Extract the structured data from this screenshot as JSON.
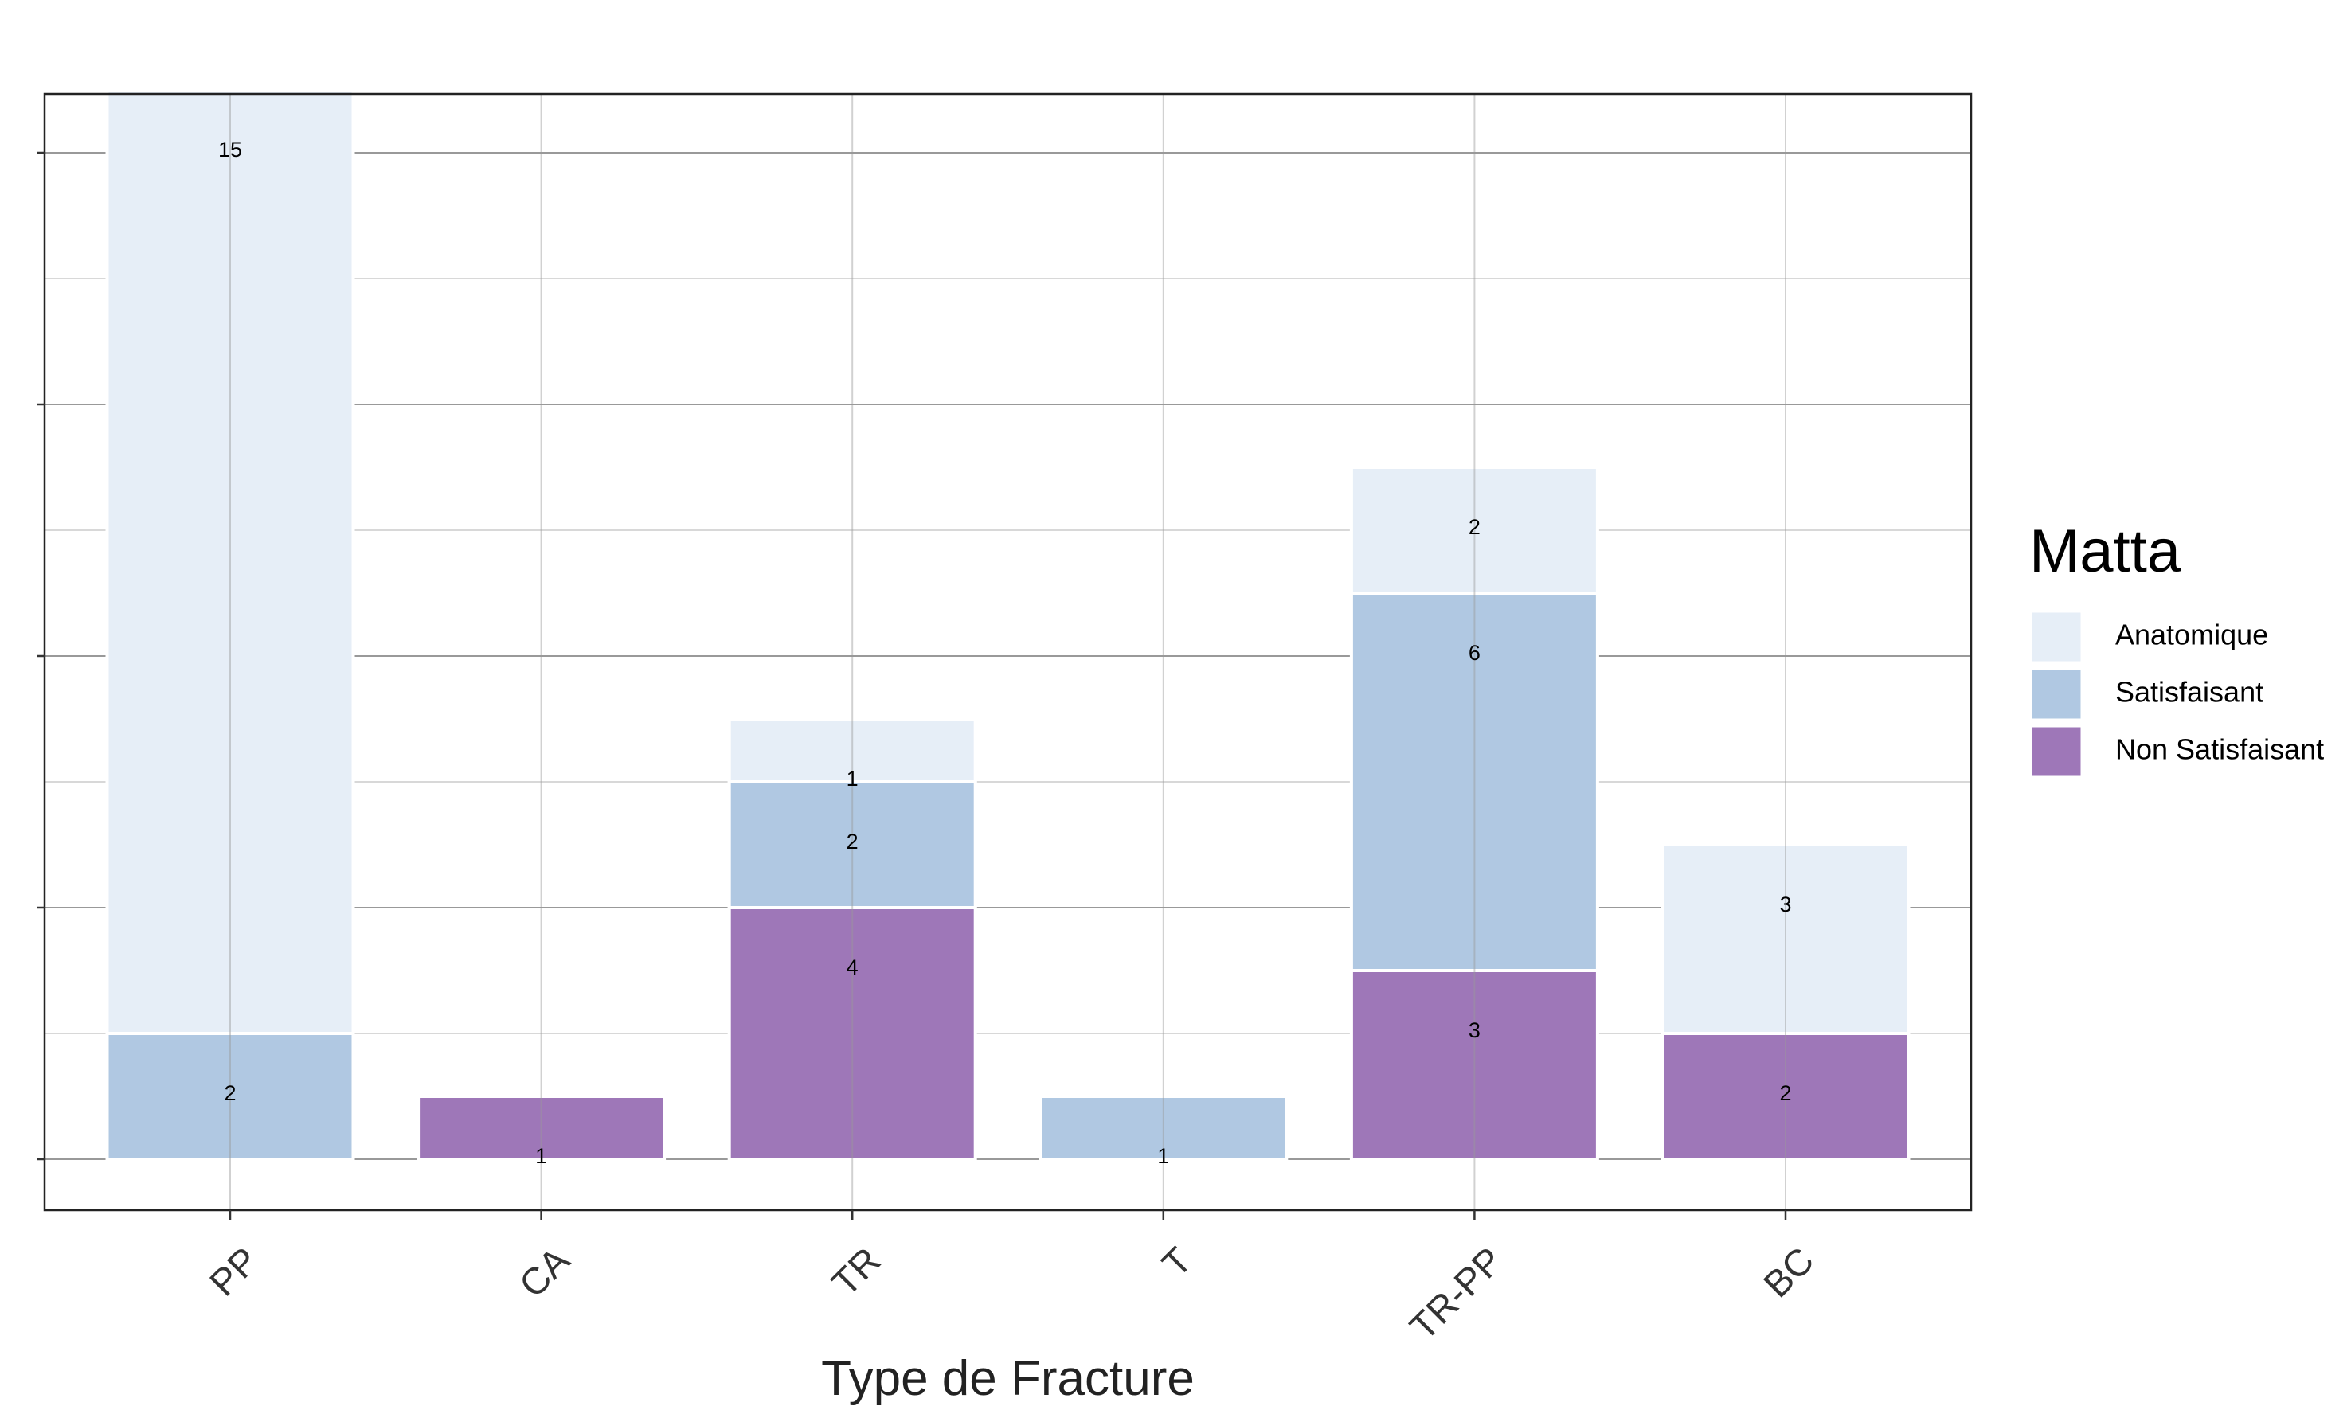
{
  "chart_data": {
    "type": "bar",
    "stacked": true,
    "xlabel": "Type de Fracture",
    "ylabel": "",
    "categories": [
      "PP",
      "CA",
      "TR",
      "T",
      "TR-PP",
      "BC"
    ],
    "ylim": [
      -0.8,
      17
    ],
    "grid": true,
    "legend": {
      "title": "Matta",
      "position": "right"
    },
    "series": [
      {
        "name": "Non Satisfaisant",
        "color": "#9e77b8",
        "values": [
          0,
          1,
          4,
          0,
          3,
          2
        ]
      },
      {
        "name": "Satisfaisant",
        "color": "#b0c8e2",
        "values": [
          2,
          0,
          2,
          1,
          6,
          0
        ]
      },
      {
        "name": "Anatomique",
        "color": "#e6eef7",
        "values": [
          15,
          0,
          1,
          0,
          2,
          3
        ]
      }
    ]
  }
}
